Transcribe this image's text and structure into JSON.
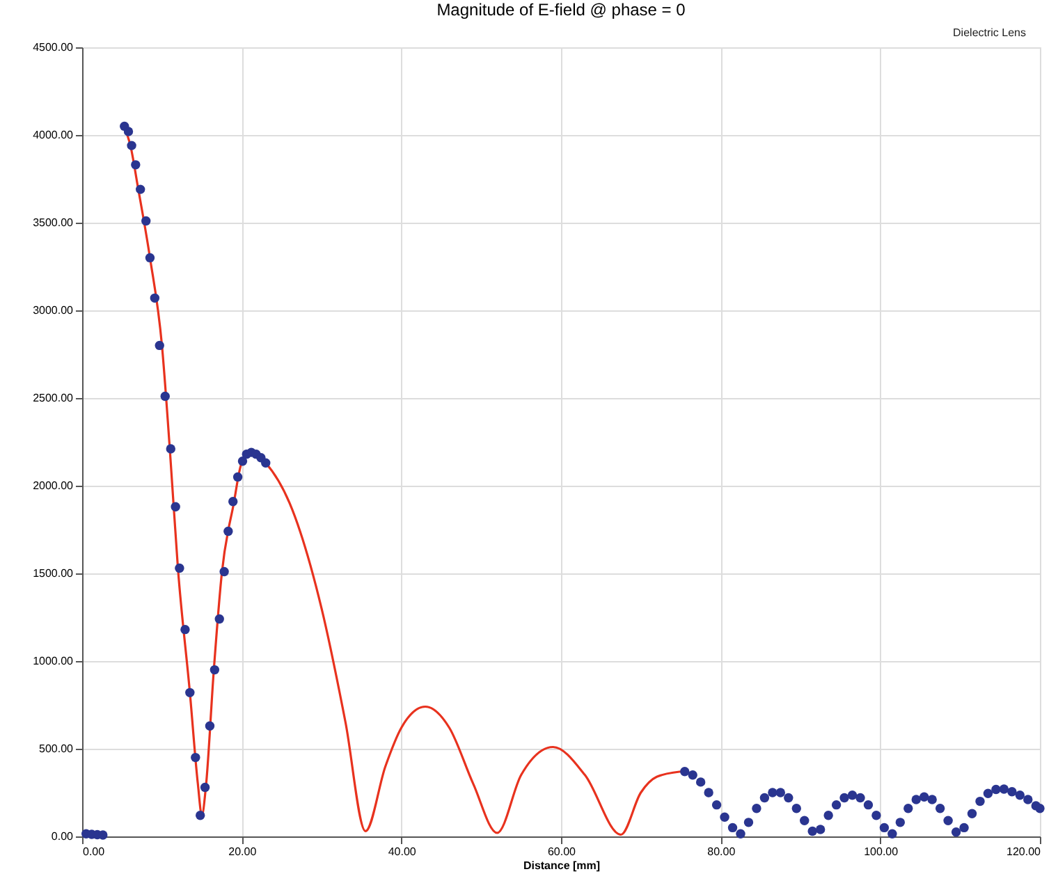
{
  "chart_data": {
    "type": "line",
    "title": "Magnitude of E-field @ phase = 0",
    "xlabel": "Distance [mm]",
    "annotations": [
      "Dielectric Lens"
    ],
    "xlim": [
      0,
      120
    ],
    "ylim": [
      0,
      4500
    ],
    "xticks": [
      {
        "value": 0,
        "label": "0.00"
      },
      {
        "value": 20,
        "label": "20.00"
      },
      {
        "value": 40,
        "label": "40.00"
      },
      {
        "value": 60,
        "label": "60.00"
      },
      {
        "value": 80,
        "label": "80.00"
      },
      {
        "value": 100,
        "label": "100.00"
      },
      {
        "value": 120,
        "label": "120.00"
      }
    ],
    "yticks": [
      {
        "value": 0,
        "label": "0.00"
      },
      {
        "value": 500,
        "label": "500.00"
      },
      {
        "value": 1000,
        "label": "1000.00"
      },
      {
        "value": 1500,
        "label": "1500.00"
      },
      {
        "value": 2000,
        "label": "2000.00"
      },
      {
        "value": 2500,
        "label": "2500.00"
      },
      {
        "value": 3000,
        "label": "3000.00"
      },
      {
        "value": 3500,
        "label": "3500.00"
      },
      {
        "value": 4000,
        "label": "4000.00"
      },
      {
        "value": 4500,
        "label": "4500.00"
      }
    ],
    "grid": true,
    "series": [
      {
        "color": "#e8321e",
        "line_style": "solid",
        "marker": "none",
        "x": [
          5.2,
          6,
          7,
          8.5,
          10,
          11,
          12,
          13.5,
          14.5,
          15,
          15.5,
          16.5,
          17.5,
          19,
          20,
          21.5,
          23,
          26,
          30,
          33,
          35.5,
          38,
          40,
          43,
          46,
          49,
          52,
          55,
          59,
          63,
          67.5,
          70,
          72,
          75
        ],
        "values": [
          4050,
          3950,
          3700,
          3300,
          2800,
          2200,
          1530,
          820,
          300,
          120,
          280,
          950,
          1500,
          1900,
          2130,
          2190,
          2130,
          1900,
          1300,
          650,
          30,
          400,
          620,
          740,
          620,
          300,
          20,
          350,
          510,
          350,
          10,
          250,
          340,
          370
        ]
      },
      {
        "type": "scatter",
        "color": "#2a3590",
        "marker": "circle",
        "x": [
          0.5,
          1.2,
          1.9,
          2.6,
          5.3,
          5.8,
          6.2,
          6.7,
          7.3,
          8.0,
          8.5,
          9.1,
          9.7,
          10.4,
          11.1,
          11.7,
          12.2,
          12.9,
          13.5,
          14.2,
          14.8,
          15.4,
          16.0,
          16.6,
          17.2,
          17.8,
          18.3,
          18.9,
          19.5,
          20.1,
          20.6,
          21.2,
          21.8,
          22.4,
          23.0,
          75.5,
          76.5,
          77.5,
          78.5,
          79.5,
          80.5,
          81.5,
          82.5,
          83.5,
          84.5,
          85.5,
          86.5,
          87.5,
          88.5,
          89.5,
          90.5,
          91.5,
          92.5,
          93.5,
          94.5,
          95.5,
          96.5,
          97.5,
          98.5,
          99.5,
          100.5,
          101.5,
          102.5,
          103.5,
          104.5,
          105.5,
          106.5,
          107.5,
          108.5,
          109.5,
          110.5,
          111.5,
          112.5,
          113.5,
          114.5,
          115.5,
          116.5,
          117.5,
          118.5,
          119.5,
          120
        ],
        "values": [
          15,
          12,
          10,
          8,
          4050,
          4020,
          3940,
          3830,
          3690,
          3510,
          3300,
          3070,
          2800,
          2510,
          2210,
          1880,
          1530,
          1180,
          820,
          450,
          120,
          280,
          630,
          950,
          1240,
          1510,
          1740,
          1910,
          2050,
          2140,
          2180,
          2190,
          2180,
          2160,
          2130,
          370,
          350,
          310,
          250,
          180,
          110,
          50,
          15,
          80,
          160,
          220,
          250,
          250,
          220,
          160,
          90,
          30,
          40,
          120,
          180,
          220,
          235,
          220,
          180,
          120,
          50,
          15,
          80,
          160,
          210,
          225,
          210,
          160,
          90,
          25,
          50,
          130,
          200,
          245,
          268,
          270,
          255,
          235,
          210,
          175,
          160
        ]
      }
    ]
  }
}
